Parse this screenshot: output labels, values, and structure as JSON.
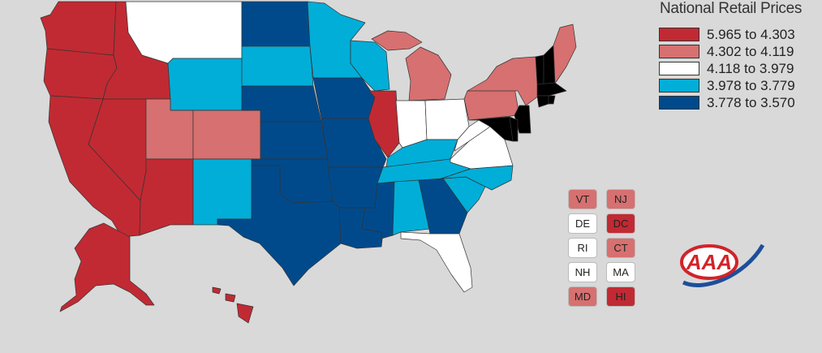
{
  "title": "National Retail Prices",
  "colors": {
    "tier1": "#c12a33",
    "tier2": "#d77070",
    "tier3": "#ffffff",
    "tier4": "#00aed8",
    "tier5": "#004a8c",
    "background": "#d9d9d9"
  },
  "legend": [
    {
      "label": "5.965 to 4.303",
      "tier": "tier1"
    },
    {
      "label": "4.302 to 4.119",
      "tier": "tier2"
    },
    {
      "label": "4.118 to 3.979",
      "tier": "tier3"
    },
    {
      "label": "3.978 to 3.779",
      "tier": "tier4"
    },
    {
      "label": "3.778 to 3.570",
      "tier": "tier5"
    }
  ],
  "small_states": [
    {
      "code": "VT",
      "tier": "tier2"
    },
    {
      "code": "NJ",
      "tier": "tier2"
    },
    {
      "code": "DE",
      "tier": "tier3"
    },
    {
      "code": "DC",
      "tier": "tier1"
    },
    {
      "code": "RI",
      "tier": "tier3"
    },
    {
      "code": "CT",
      "tier": "tier2"
    },
    {
      "code": "NH",
      "tier": "tier3"
    },
    {
      "code": "MA",
      "tier": "tier3"
    },
    {
      "code": "MD",
      "tier": "tier2"
    },
    {
      "code": "HI",
      "tier": "tier1"
    }
  ],
  "states": [
    {
      "code": "WA",
      "tier": "tier1"
    },
    {
      "code": "OR",
      "tier": "tier1"
    },
    {
      "code": "CA",
      "tier": "tier1"
    },
    {
      "code": "NV",
      "tier": "tier1"
    },
    {
      "code": "ID",
      "tier": "tier1"
    },
    {
      "code": "AZ",
      "tier": "tier1"
    },
    {
      "code": "IL",
      "tier": "tier1"
    },
    {
      "code": "AK",
      "tier": "tier1"
    },
    {
      "code": "HI",
      "tier": "tier1"
    },
    {
      "code": "UT",
      "tier": "tier2"
    },
    {
      "code": "CO",
      "tier": "tier2"
    },
    {
      "code": "MI",
      "tier": "tier2"
    },
    {
      "code": "PA",
      "tier": "tier2"
    },
    {
      "code": "NY",
      "tier": "tier2"
    },
    {
      "code": "ME",
      "tier": "tier2"
    },
    {
      "code": "MT",
      "tier": "tier3"
    },
    {
      "code": "IN",
      "tier": "tier3"
    },
    {
      "code": "OH",
      "tier": "tier3"
    },
    {
      "code": "WV",
      "tier": "tier3"
    },
    {
      "code": "VA",
      "tier": "tier3"
    },
    {
      "code": "FL",
      "tier": "tier3"
    },
    {
      "code": "WY",
      "tier": "tier4"
    },
    {
      "code": "SD",
      "tier": "tier4"
    },
    {
      "code": "MN",
      "tier": "tier4"
    },
    {
      "code": "WI",
      "tier": "tier4"
    },
    {
      "code": "NM",
      "tier": "tier4"
    },
    {
      "code": "KY",
      "tier": "tier4"
    },
    {
      "code": "TN",
      "tier": "tier4"
    },
    {
      "code": "NC",
      "tier": "tier4"
    },
    {
      "code": "SC",
      "tier": "tier4"
    },
    {
      "code": "AL",
      "tier": "tier4"
    },
    {
      "code": "ND",
      "tier": "tier5"
    },
    {
      "code": "NE",
      "tier": "tier5"
    },
    {
      "code": "KS",
      "tier": "tier5"
    },
    {
      "code": "OK",
      "tier": "tier5"
    },
    {
      "code": "TX",
      "tier": "tier5"
    },
    {
      "code": "IA",
      "tier": "tier5"
    },
    {
      "code": "MO",
      "tier": "tier5"
    },
    {
      "code": "AR",
      "tier": "tier5"
    },
    {
      "code": "LA",
      "tier": "tier5"
    },
    {
      "code": "MS",
      "tier": "tier5"
    },
    {
      "code": "GA",
      "tier": "tier5"
    }
  ]
}
